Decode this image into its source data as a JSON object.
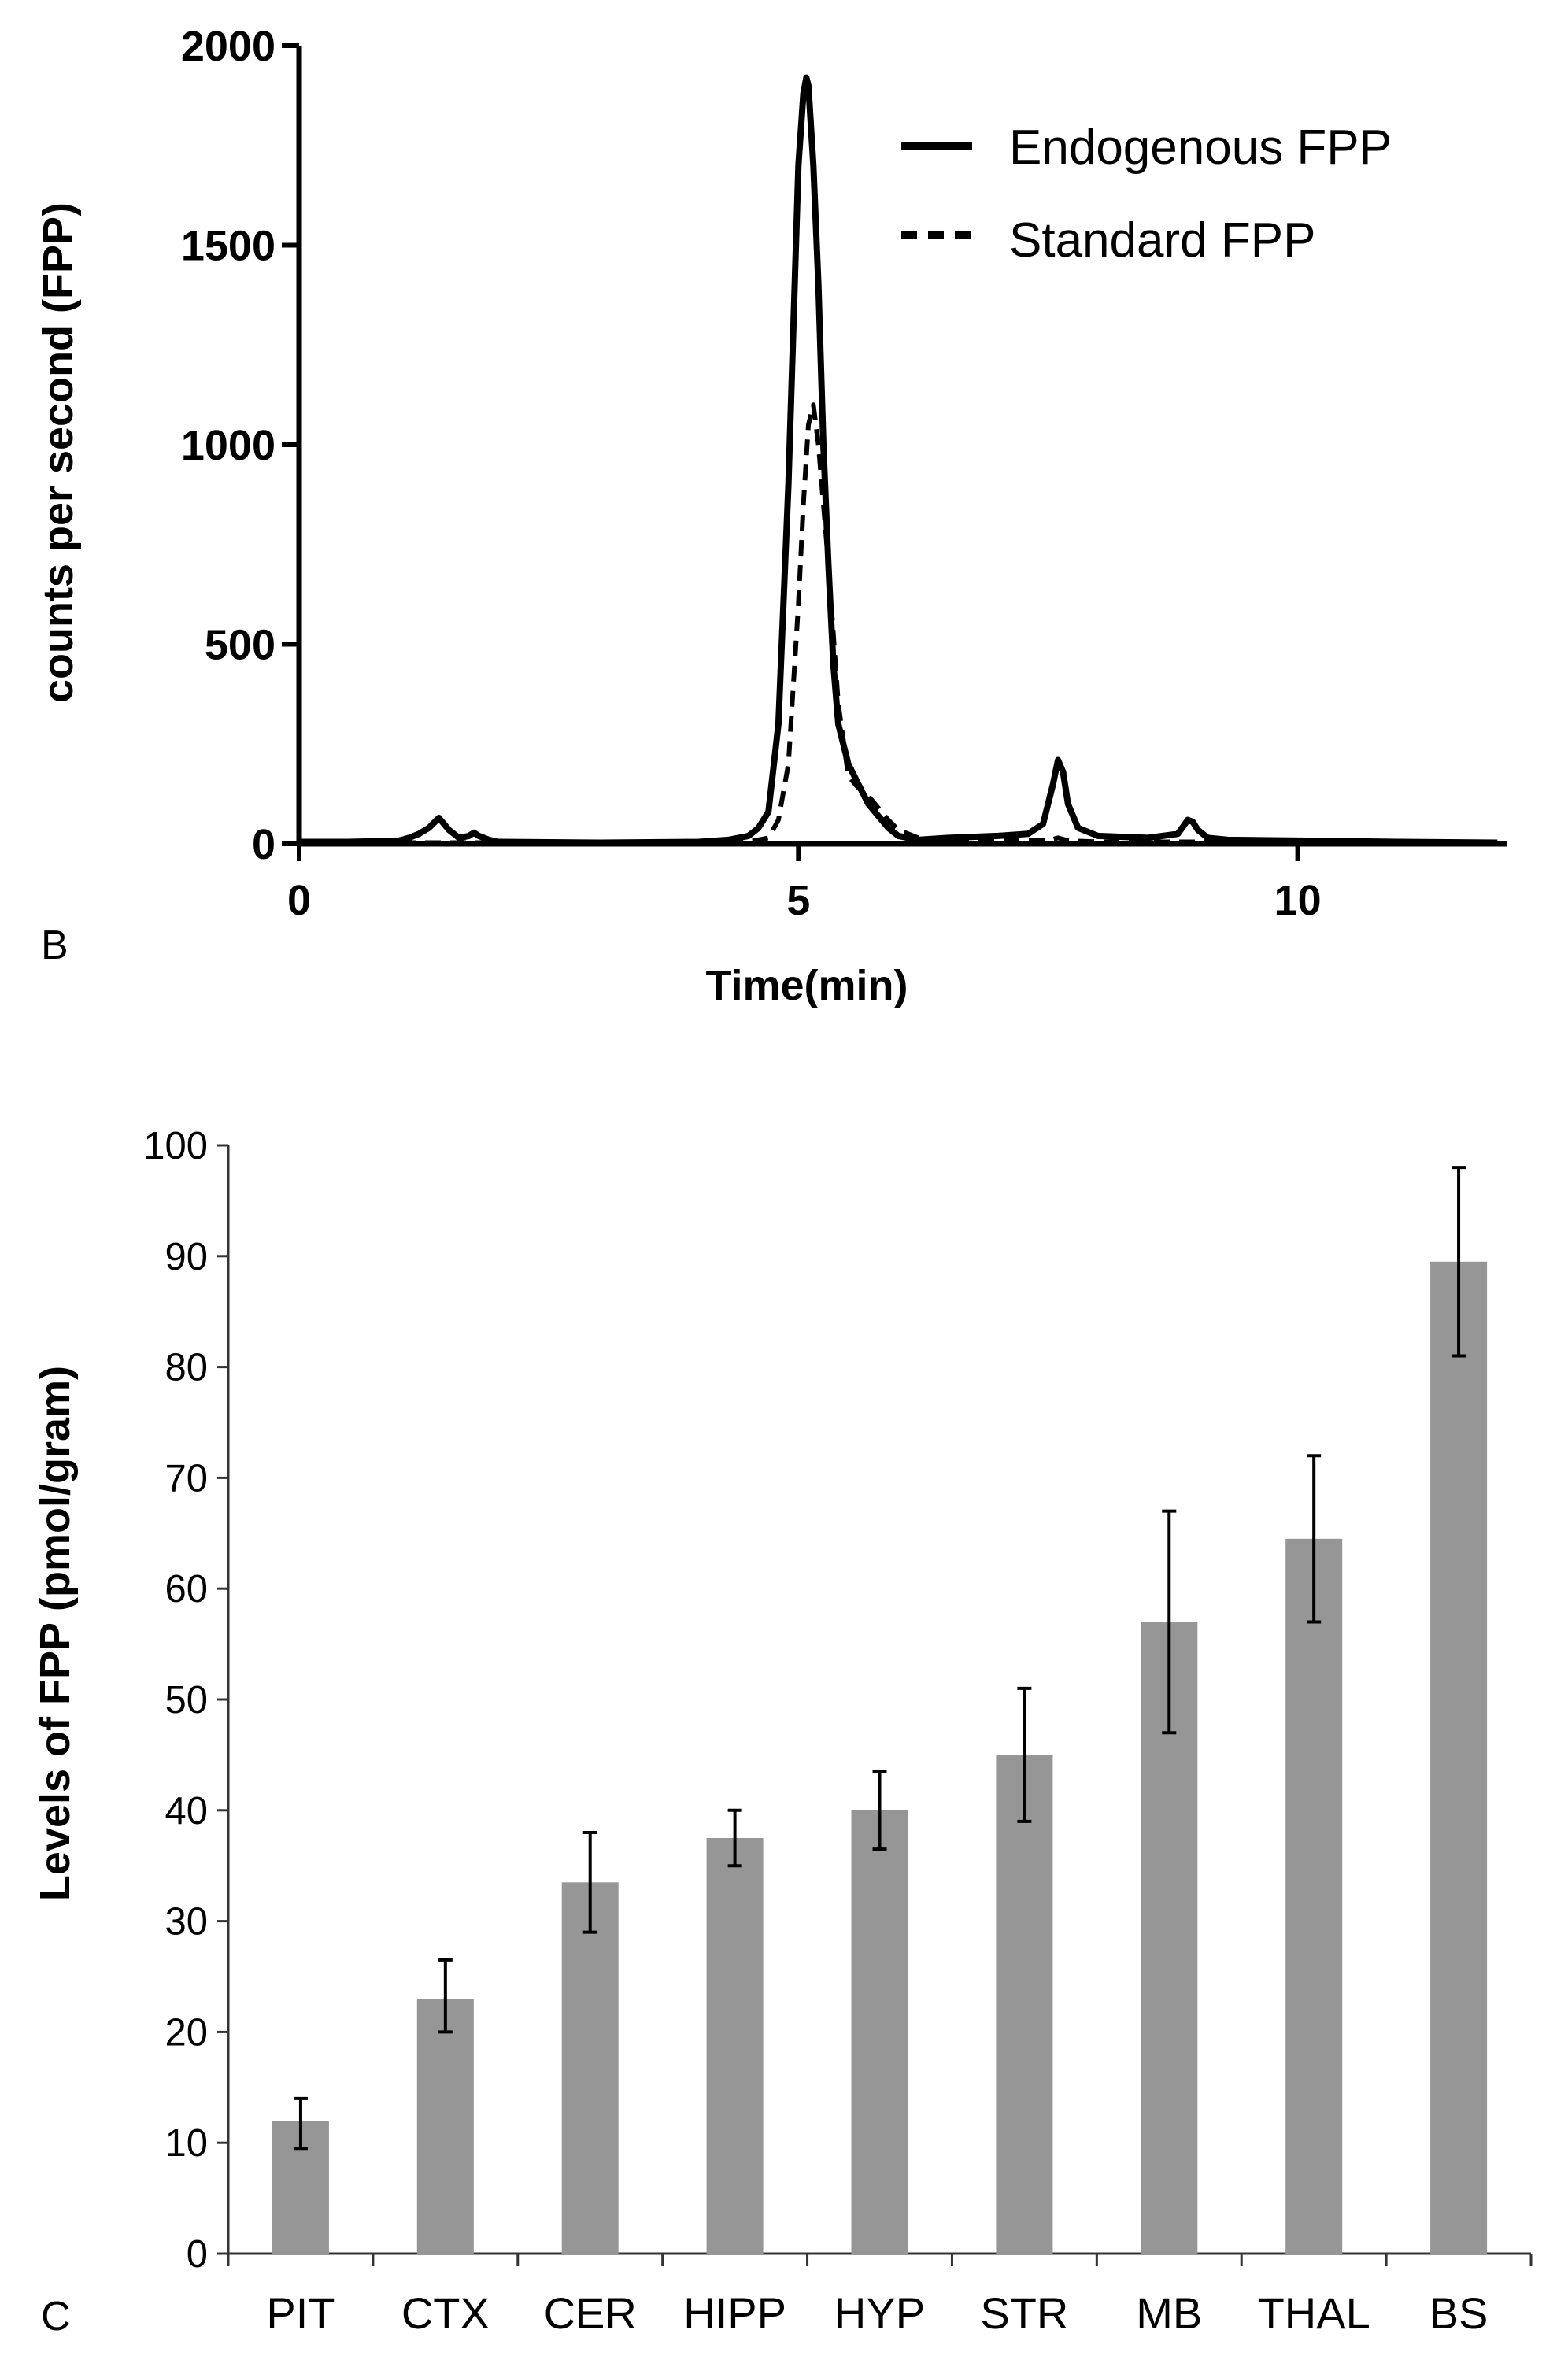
{
  "panels": {
    "b": {
      "letter": "B"
    },
    "c": {
      "letter": "C"
    }
  },
  "chart_data": [
    {
      "type": "line",
      "panel": "B",
      "title": "",
      "xlabel": "Time(min)",
      "ylabel": "counts per second (FPP)",
      "xlim": [
        0,
        12.1
      ],
      "ylim": [
        0,
        2000
      ],
      "xticks": [
        0,
        5,
        10
      ],
      "yticks": [
        0,
        500,
        1000,
        1500,
        2000
      ],
      "legend_position": "top-right",
      "series": [
        {
          "name": "Endogenous FPP",
          "style": "solid",
          "x": [
            0,
            0.5,
            1.0,
            1.1,
            1.2,
            1.3,
            1.4,
            1.5,
            1.6,
            1.7,
            1.75,
            1.8,
            1.9,
            2.0,
            3.0,
            4.0,
            4.3,
            4.5,
            4.6,
            4.7,
            4.8,
            4.9,
            4.95,
            5.0,
            5.05,
            5.08,
            5.1,
            5.15,
            5.2,
            5.25,
            5.3,
            5.35,
            5.4,
            5.5,
            5.6,
            5.7,
            5.8,
            5.9,
            6.0,
            6.2,
            6.5,
            7.0,
            7.3,
            7.45,
            7.55,
            7.6,
            7.65,
            7.7,
            7.8,
            8.0,
            8.5,
            8.8,
            8.9,
            8.95,
            9.0,
            9.1,
            9.3,
            10.0,
            11.0,
            12.0
          ],
          "y": [
            5,
            5,
            8,
            15,
            25,
            40,
            65,
            35,
            15,
            20,
            28,
            20,
            10,
            5,
            3,
            5,
            10,
            20,
            40,
            80,
            300,
            900,
            1300,
            1700,
            1880,
            1920,
            1900,
            1700,
            1400,
            1000,
            700,
            450,
            300,
            200,
            150,
            100,
            70,
            40,
            20,
            10,
            15,
            20,
            25,
            50,
            150,
            210,
            180,
            100,
            40,
            20,
            15,
            25,
            60,
            55,
            35,
            15,
            10,
            8,
            5,
            3
          ]
        },
        {
          "name": "Standard FPP",
          "style": "dashed",
          "x": [
            0,
            1.0,
            2.0,
            3.0,
            4.0,
            4.5,
            4.7,
            4.8,
            4.9,
            5.0,
            5.05,
            5.1,
            5.15,
            5.2,
            5.3,
            5.4,
            5.5,
            5.6,
            5.7,
            5.8,
            5.9,
            6.0,
            6.2,
            6.5,
            7.0,
            7.5,
            7.6,
            7.7,
            8.0,
            9.0,
            10.0,
            11.0,
            12.0
          ],
          "y": [
            3,
            3,
            3,
            3,
            3,
            5,
            15,
            60,
            200,
            600,
            850,
            1050,
            1100,
            1000,
            700,
            350,
            170,
            140,
            120,
            90,
            60,
            35,
            15,
            10,
            8,
            8,
            15,
            8,
            5,
            5,
            5,
            5,
            5
          ]
        }
      ]
    },
    {
      "type": "bar",
      "panel": "C",
      "title": "",
      "xlabel": "",
      "ylabel": "Levels of FPP (pmol/gram)",
      "ylim": [
        0,
        100
      ],
      "yticks": [
        0,
        10,
        20,
        30,
        40,
        50,
        60,
        70,
        80,
        90,
        100
      ],
      "categories": [
        "PIT",
        "CTX",
        "CER",
        "HIPP",
        "HYP",
        "STR",
        "MB",
        "THAL",
        "BS"
      ],
      "values": [
        12,
        23,
        33.5,
        37.5,
        40,
        45,
        57,
        64.5,
        89.5
      ],
      "error_low": [
        9.5,
        20,
        29,
        35,
        36.5,
        39,
        47,
        57,
        81
      ],
      "error_high": [
        14,
        26.5,
        38,
        40,
        43.5,
        51,
        67,
        72,
        98
      ],
      "bar_color": "#969696"
    }
  ]
}
